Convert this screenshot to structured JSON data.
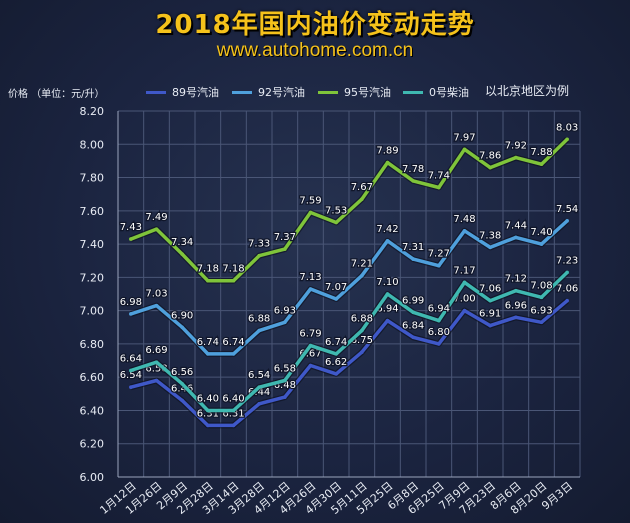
{
  "title": "2018年国内油价变动走势",
  "subtitle": "www.autohome.com.cn",
  "y_axis_label": "价格 （单位：元/升）",
  "note": "以北京地区为例",
  "colors": {
    "s89": "#3f58c8",
    "s92": "#4fa0dc",
    "s95": "#7fc43a",
    "s0": "#3fb8b0"
  },
  "chart_data": {
    "type": "line",
    "title": "2018年国内油价变动走势",
    "ylabel": "价格 （单位：元/升）",
    "ylim": [
      6.0,
      8.2
    ],
    "yticks": [
      "6.00",
      "6.20",
      "6.40",
      "6.60",
      "6.80",
      "7.00",
      "7.20",
      "7.40",
      "7.60",
      "7.80",
      "8.00",
      "8.20"
    ],
    "grid": true,
    "legend": "top",
    "categories": [
      "1月12日",
      "1月26日",
      "2月9日",
      "2月28日",
      "3月14日",
      "3月28日",
      "4月12日",
      "4月26日",
      "4月30日",
      "5月11日",
      "5月25日",
      "6月8日",
      "6月25日",
      "7月9日",
      "7月23日",
      "8月6日",
      "8月20日",
      "9月3日"
    ],
    "series": [
      {
        "name": "89号汽油",
        "color": "#3f58c8",
        "labels": true,
        "values": [
          6.54,
          6.58,
          6.46,
          6.31,
          6.31,
          6.44,
          6.48,
          6.67,
          6.62,
          6.75,
          6.94,
          6.84,
          6.8,
          7.0,
          6.91,
          6.96,
          6.93,
          7.06
        ]
      },
      {
        "name": "92号汽油",
        "color": "#4fa0dc",
        "labels": true,
        "values": [
          6.98,
          7.03,
          6.9,
          6.74,
          6.74,
          6.88,
          6.93,
          7.13,
          7.07,
          7.21,
          7.42,
          7.31,
          7.27,
          7.48,
          7.38,
          7.44,
          7.4,
          7.54
        ]
      },
      {
        "name": "95号汽油",
        "color": "#7fc43a",
        "labels": true,
        "values": [
          7.43,
          7.49,
          7.34,
          7.18,
          7.18,
          7.33,
          7.37,
          7.59,
          7.53,
          7.67,
          7.89,
          7.78,
          7.74,
          7.97,
          7.86,
          7.92,
          7.88,
          8.03
        ]
      },
      {
        "name": "0号柴油",
        "color": "#3fb8b0",
        "labels": true,
        "values": [
          6.64,
          6.69,
          6.56,
          6.4,
          6.4,
          6.54,
          6.58,
          6.79,
          6.74,
          6.88,
          7.1,
          6.99,
          6.94,
          7.17,
          7.06,
          7.12,
          7.08,
          7.23
        ]
      }
    ]
  }
}
